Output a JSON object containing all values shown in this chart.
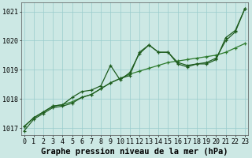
{
  "title": "Graphe pression niveau de la mer (hPa)",
  "hours": [
    0,
    1,
    2,
    3,
    4,
    5,
    6,
    7,
    8,
    9,
    10,
    11,
    12,
    13,
    14,
    15,
    16,
    17,
    18,
    19,
    20,
    21,
    22,
    23
  ],
  "series1": [
    1017.05,
    1017.35,
    1017.55,
    1017.75,
    1017.8,
    1018.05,
    1018.25,
    1018.3,
    1018.45,
    1019.15,
    1018.65,
    1018.9,
    1019.55,
    1019.85,
    1019.6,
    1019.6,
    1019.2,
    1019.1,
    1019.2,
    1019.2,
    1019.35,
    1020.1,
    1020.35,
    1021.1
  ],
  "series2": [
    1017.05,
    1017.35,
    1017.55,
    1017.75,
    1017.8,
    1017.9,
    1018.05,
    1018.15,
    1018.35,
    1018.55,
    1018.7,
    1018.85,
    1018.95,
    1019.05,
    1019.15,
    1019.25,
    1019.3,
    1019.35,
    1019.4,
    1019.45,
    1019.5,
    1019.6,
    1019.75,
    1019.9
  ],
  "series3": [
    1016.9,
    1017.3,
    1017.5,
    1017.7,
    1017.75,
    1017.85,
    1018.05,
    1018.15,
    1018.35,
    1018.55,
    1018.7,
    1018.8,
    1019.6,
    1019.85,
    1019.6,
    1019.6,
    1019.25,
    1019.15,
    1019.2,
    1019.25,
    1019.4,
    1020.0,
    1020.3,
    1021.1
  ],
  "ylim": [
    1016.75,
    1021.3
  ],
  "yticks": [
    1017,
    1018,
    1019,
    1020,
    1021
  ],
  "bg_color": "#cce8e4",
  "grid_color": "#99cccc",
  "line_color1": "#1e5c1e",
  "line_color2": "#2d7a2d",
  "line_color3": "#1e5c1e",
  "title_fontsize": 7.5,
  "tick_fontsize": 6
}
